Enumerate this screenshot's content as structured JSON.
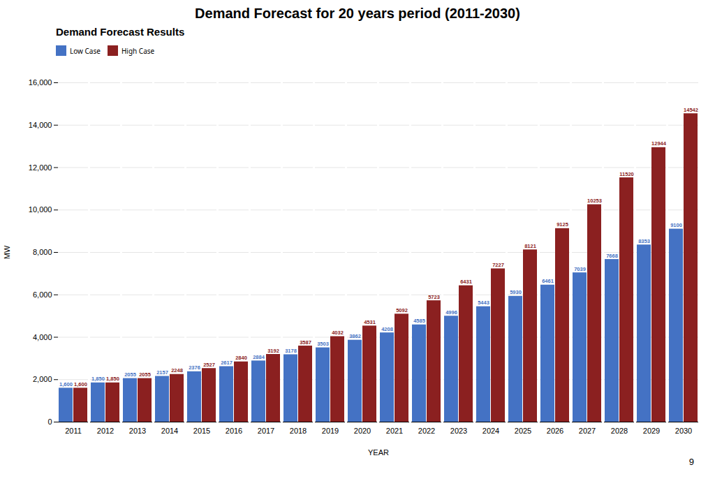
{
  "chart_data": {
    "type": "bar",
    "title": "Demand Forecast  for  20 years period  (2011-2030)",
    "subtitle": "Demand Forecast Results",
    "xlabel": "YEAR",
    "ylabel": "MW",
    "categories": [
      "2011",
      "2012",
      "2013",
      "2014",
      "2015",
      "2016",
      "2017",
      "2018",
      "2019",
      "2020",
      "2021",
      "2022",
      "2023",
      "2024",
      "2025",
      "2026",
      "2027",
      "2028",
      "2029",
      "2030"
    ],
    "series": [
      {
        "name": "Low Case",
        "color": "#4472c4",
        "values": [
          1600,
          1850,
          2055,
          2157,
          2376,
          2617,
          2884,
          3178,
          3503,
          3862,
          4208,
          4585,
          4996,
          5443,
          5930,
          6461,
          7039,
          7668,
          8353,
          9100
        ],
        "value_labels": [
          "1,600",
          "1,850",
          "2055",
          "2157",
          "2376",
          "2617",
          "2884",
          "3178",
          "3503",
          "3862",
          "4208",
          "4585",
          "4996",
          "5443",
          "5930",
          "6461",
          "7039",
          "7668",
          "8353",
          "9100"
        ]
      },
      {
        "name": "High Case",
        "color": "#8b2020",
        "values": [
          1600,
          1850,
          2055,
          2248,
          2527,
          2840,
          3192,
          3587,
          4032,
          4531,
          5092,
          5723,
          6431,
          7227,
          8121,
          9125,
          10253,
          11520,
          12944,
          14542
        ],
        "value_labels": [
          "1,600",
          "1,850",
          "2055",
          "2248",
          "2527",
          "2840",
          "3192",
          "3587",
          "4032",
          "4531",
          "5092",
          "5723",
          "6431",
          "7227",
          "8121",
          "9125",
          "10253",
          "11520",
          "12944",
          "14542"
        ]
      }
    ],
    "ylim": [
      0,
      16000
    ],
    "yticks": [
      0,
      {
        "value": 2000,
        "label": "2,000"
      },
      {
        "value": 4000,
        "label": "4,000"
      },
      {
        "value": 6000,
        "label": "6,000"
      },
      {
        "value": 8000,
        "label": "8,000"
      },
      {
        "value": 10000,
        "label": "10,000"
      },
      {
        "value": 12000,
        "label": "12,000"
      },
      {
        "value": 14000,
        "label": "14,000"
      },
      {
        "value": 16000,
        "label": "16,000"
      }
    ],
    "grid": true,
    "legend": "top",
    "data_labels": true,
    "annotations": [
      "9"
    ]
  }
}
